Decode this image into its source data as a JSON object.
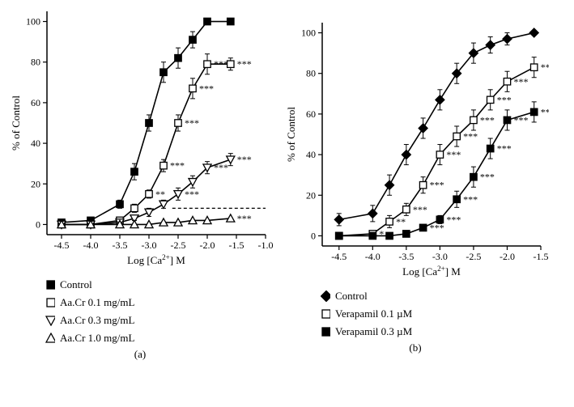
{
  "colors": {
    "text": "#000000",
    "stroke": "#000000",
    "background": "#ffffff",
    "dashed": "#000000"
  },
  "fonts": {
    "axis_label_size_pt": 13,
    "tick_size_pt": 12,
    "annot_size_pt": 12,
    "legend_size_pt": 12
  },
  "panel_a": {
    "type": "scatter-line",
    "x_label_prefix": "Log [Ca",
    "x_label_suffix": "] M",
    "x_label_sup": "2+",
    "y_label": "% of Control",
    "xlim": [
      -4.75,
      -1.0
    ],
    "x_ticks": [
      -4.5,
      -4.0,
      -3.5,
      -3.0,
      -2.5,
      -2.0,
      -1.5,
      -1.0
    ],
    "ylim": [
      -5,
      105
    ],
    "y_ticks": [
      0,
      20,
      40,
      60,
      80,
      100
    ],
    "sublabel": "(a)",
    "dashed_y": 8,
    "series": [
      {
        "id": "control",
        "label": "Control",
        "marker": "filled-square",
        "color": "#000000",
        "fill": "#000000",
        "points": [
          {
            "x": -4.5,
            "y": 1,
            "err": 0
          },
          {
            "x": -4.0,
            "y": 2,
            "err": 1
          },
          {
            "x": -3.5,
            "y": 10,
            "err": 2
          },
          {
            "x": -3.25,
            "y": 26,
            "err": 4
          },
          {
            "x": -3.0,
            "y": 50,
            "err": 4
          },
          {
            "x": -2.75,
            "y": 75,
            "err": 5
          },
          {
            "x": -2.5,
            "y": 82,
            "err": 5
          },
          {
            "x": -2.25,
            "y": 91,
            "err": 4
          },
          {
            "x": -2.0,
            "y": 100,
            "err": 0
          },
          {
            "x": -1.6,
            "y": 100,
            "err": 0
          }
        ]
      },
      {
        "id": "aacr01",
        "label": "Aa.Cr 0.1 mg/mL",
        "marker": "open-square",
        "color": "#000000",
        "fill": "#ffffff",
        "points": [
          {
            "x": -4.5,
            "y": 0,
            "err": 0
          },
          {
            "x": -4.0,
            "y": 0,
            "err": 0
          },
          {
            "x": -3.5,
            "y": 2,
            "err": 1
          },
          {
            "x": -3.25,
            "y": 8,
            "err": 2
          },
          {
            "x": -3.0,
            "y": 15,
            "err": 2,
            "annot": "**"
          },
          {
            "x": -2.75,
            "y": 29,
            "err": 3,
            "annot": "***"
          },
          {
            "x": -2.5,
            "y": 50,
            "err": 4,
            "annot": "***"
          },
          {
            "x": -2.25,
            "y": 67,
            "err": 5,
            "annot": "***"
          },
          {
            "x": -2.0,
            "y": 79,
            "err": 5,
            "annot": "***"
          },
          {
            "x": -1.6,
            "y": 79,
            "err": 3,
            "annot": "***"
          }
        ]
      },
      {
        "id": "aacr03",
        "label": "Aa.Cr 0.3 mg/mL",
        "marker": "open-triangle-down",
        "color": "#000000",
        "fill": "#ffffff",
        "points": [
          {
            "x": -4.5,
            "y": 0,
            "err": 0
          },
          {
            "x": -4.0,
            "y": 0,
            "err": 0
          },
          {
            "x": -3.5,
            "y": 1,
            "err": 0
          },
          {
            "x": -3.25,
            "y": 3,
            "err": 1
          },
          {
            "x": -3.0,
            "y": 6,
            "err": 2
          },
          {
            "x": -2.75,
            "y": 10,
            "err": 2
          },
          {
            "x": -2.5,
            "y": 15,
            "err": 3,
            "annot": "***"
          },
          {
            "x": -2.25,
            "y": 21,
            "err": 3
          },
          {
            "x": -2.0,
            "y": 28,
            "err": 3,
            "annot": "***"
          },
          {
            "x": -1.6,
            "y": 32,
            "err": 3,
            "annot": "***"
          }
        ]
      },
      {
        "id": "aacr10",
        "label": "Aa.Cr 1.0 mg/mL",
        "marker": "open-triangle-up",
        "color": "#000000",
        "fill": "#ffffff",
        "points": [
          {
            "x": -4.5,
            "y": 0,
            "err": 0
          },
          {
            "x": -4.0,
            "y": 0,
            "err": 0
          },
          {
            "x": -3.5,
            "y": 0,
            "err": 0
          },
          {
            "x": -3.25,
            "y": 0,
            "err": 0
          },
          {
            "x": -3.0,
            "y": 0,
            "err": 0
          },
          {
            "x": -2.75,
            "y": 1,
            "err": 0
          },
          {
            "x": -2.5,
            "y": 1,
            "err": 0
          },
          {
            "x": -2.25,
            "y": 2,
            "err": 0
          },
          {
            "x": -2.0,
            "y": 2,
            "err": 0
          },
          {
            "x": -1.6,
            "y": 3,
            "err": 0,
            "annot": "***"
          }
        ]
      }
    ]
  },
  "panel_b": {
    "type": "scatter-line",
    "x_label_prefix": "Log [Ca",
    "x_label_suffix": "] M",
    "x_label_sup": "2+",
    "y_label": "% of Control",
    "xlim": [
      -4.75,
      -1.5
    ],
    "x_ticks": [
      -4.5,
      -4.0,
      -3.5,
      -3.0,
      -2.5,
      -2.0,
      -1.5
    ],
    "ylim": [
      -5,
      105
    ],
    "y_ticks": [
      0,
      20,
      40,
      60,
      80,
      100
    ],
    "sublabel": "(b)",
    "series": [
      {
        "id": "bcontrol",
        "label": "Control",
        "marker": "filled-diamond",
        "color": "#000000",
        "fill": "#000000",
        "points": [
          {
            "x": -4.5,
            "y": 8,
            "err": 3
          },
          {
            "x": -4.0,
            "y": 11,
            "err": 4
          },
          {
            "x": -3.75,
            "y": 25,
            "err": 5
          },
          {
            "x": -3.5,
            "y": 40,
            "err": 5
          },
          {
            "x": -3.25,
            "y": 53,
            "err": 5
          },
          {
            "x": -3.0,
            "y": 67,
            "err": 5
          },
          {
            "x": -2.75,
            "y": 80,
            "err": 5
          },
          {
            "x": -2.5,
            "y": 90,
            "err": 5
          },
          {
            "x": -2.25,
            "y": 94,
            "err": 4
          },
          {
            "x": -2.0,
            "y": 97,
            "err": 3
          },
          {
            "x": -1.6,
            "y": 100,
            "err": 0
          }
        ]
      },
      {
        "id": "verap01",
        "label": "Verapamil 0.1 µM",
        "marker": "open-square",
        "color": "#000000",
        "fill": "#ffffff",
        "points": [
          {
            "x": -4.5,
            "y": 0,
            "err": 0
          },
          {
            "x": -4.0,
            "y": 1,
            "err": 0,
            "annot": "*"
          },
          {
            "x": -3.75,
            "y": 7,
            "err": 3,
            "annot": "**"
          },
          {
            "x": -3.5,
            "y": 13,
            "err": 3,
            "annot": "***"
          },
          {
            "x": -3.25,
            "y": 25,
            "err": 4,
            "annot": "***"
          },
          {
            "x": -3.0,
            "y": 40,
            "err": 5,
            "annot": "***"
          },
          {
            "x": -2.75,
            "y": 49,
            "err": 5,
            "annot": "***"
          },
          {
            "x": -2.5,
            "y": 57,
            "err": 5,
            "annot": "***"
          },
          {
            "x": -2.25,
            "y": 67,
            "err": 5,
            "annot": "***"
          },
          {
            "x": -2.0,
            "y": 76,
            "err": 5,
            "annot": "***"
          },
          {
            "x": -1.6,
            "y": 83,
            "err": 5,
            "annot": "**"
          }
        ]
      },
      {
        "id": "verap03",
        "label": "Verapamil 0.3 µM",
        "marker": "filled-square",
        "color": "#000000",
        "fill": "#000000",
        "points": [
          {
            "x": -4.5,
            "y": 0,
            "err": 0
          },
          {
            "x": -4.0,
            "y": 0,
            "err": 0
          },
          {
            "x": -3.75,
            "y": 0,
            "err": 0
          },
          {
            "x": -3.5,
            "y": 1,
            "err": 0
          },
          {
            "x": -3.25,
            "y": 4,
            "err": 1,
            "annot": "***"
          },
          {
            "x": -3.0,
            "y": 8,
            "err": 2,
            "annot": "***"
          },
          {
            "x": -2.75,
            "y": 18,
            "err": 4,
            "annot": "***"
          },
          {
            "x": -2.5,
            "y": 29,
            "err": 5,
            "annot": "***"
          },
          {
            "x": -2.25,
            "y": 43,
            "err": 5,
            "annot": "***"
          },
          {
            "x": -2.0,
            "y": 57,
            "err": 5,
            "annot": "***"
          },
          {
            "x": -1.6,
            "y": 61,
            "err": 5,
            "annot": "***"
          }
        ]
      }
    ]
  },
  "legend_a": [
    {
      "marker": "filled-square",
      "fill": "#000000",
      "label": "Control"
    },
    {
      "marker": "open-square",
      "fill": "#ffffff",
      "label": "Aa.Cr 0.1 mg/mL"
    },
    {
      "marker": "open-triangle-down",
      "fill": "#ffffff",
      "label": "Aa.Cr 0.3 mg/mL"
    },
    {
      "marker": "open-triangle-up",
      "fill": "#ffffff",
      "label": "Aa.Cr 1.0 mg/mL"
    }
  ],
  "legend_b": [
    {
      "marker": "filled-diamond",
      "fill": "#000000",
      "label": "Control"
    },
    {
      "marker": "open-square",
      "fill": "#ffffff",
      "label": "Verapamil 0.1 µM"
    },
    {
      "marker": "filled-square",
      "fill": "#000000",
      "label": "Verapamil 0.3 µM"
    }
  ]
}
